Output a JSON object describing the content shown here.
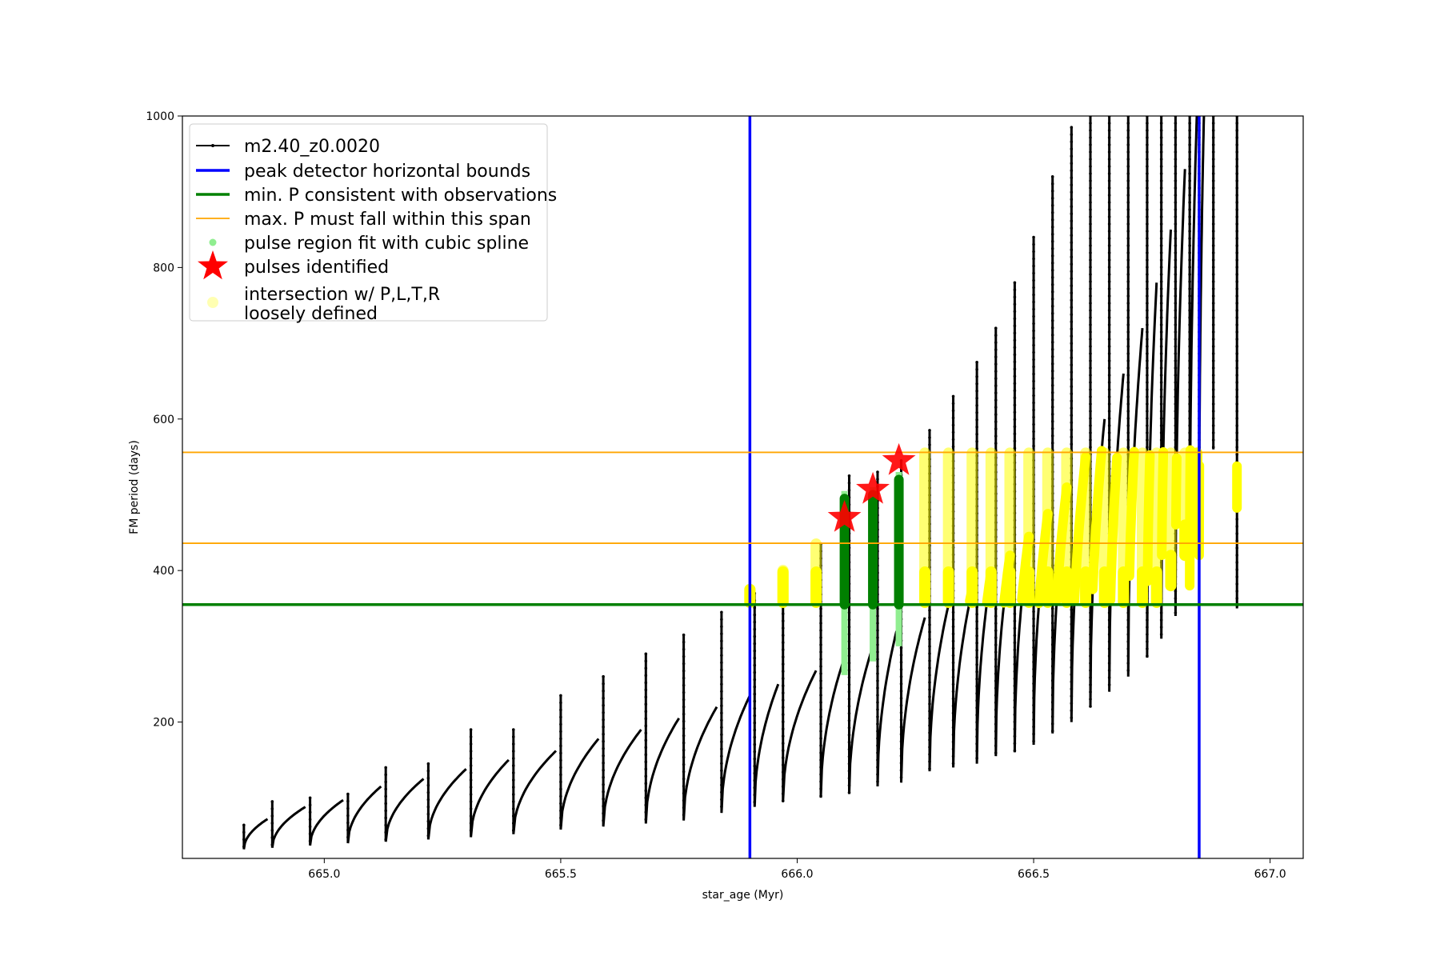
{
  "chart_data": {
    "type": "line",
    "xlabel": "star_age (Myr)",
    "ylabel": "FM period (days)",
    "xlim": [
      664.7,
      667.07
    ],
    "ylim": [
      20,
      1000
    ],
    "x_ticks": [
      665.0,
      665.5,
      666.0,
      666.5,
      667.0
    ],
    "x_tick_labels": [
      "665.0",
      "665.5",
      "666.0",
      "666.5",
      "667.0"
    ],
    "y_ticks": [
      200,
      400,
      600,
      800,
      1000
    ],
    "y_tick_labels": [
      "200",
      "400",
      "600",
      "800",
      "1000"
    ],
    "grid": false,
    "legend_position": "top-left",
    "colors": {
      "track": "#000000",
      "bounds": "#0000ff",
      "min_p": "#008000",
      "max_p_span": "#ffa500",
      "spline": "#90ee90",
      "pulse_star": "#ff0000",
      "loose": "#ffff00"
    },
    "series": [
      {
        "name": "m2.40_z0.0020",
        "kind": "pulse_track",
        "note_visible": false,
        "pulses": [
          {
            "start": 664.83,
            "y0": 32,
            "end": 664.88,
            "y1": 72,
            "spike": 64
          },
          {
            "start": 664.89,
            "y0": 34,
            "end": 664.96,
            "y1": 88,
            "spike": 95
          },
          {
            "start": 664.97,
            "y0": 37,
            "end": 665.04,
            "y1": 97,
            "spike": 100
          },
          {
            "start": 665.05,
            "y0": 40,
            "end": 665.12,
            "y1": 115,
            "spike": 105
          },
          {
            "start": 665.13,
            "y0": 42,
            "end": 665.21,
            "y1": 125,
            "spike": 140
          },
          {
            "start": 665.22,
            "y0": 45,
            "end": 665.3,
            "y1": 138,
            "spike": 145
          },
          {
            "start": 665.31,
            "y0": 48,
            "end": 665.39,
            "y1": 150,
            "spike": 190
          },
          {
            "start": 665.4,
            "y0": 52,
            "end": 665.49,
            "y1": 162,
            "spike": 190
          },
          {
            "start": 665.5,
            "y0": 58,
            "end": 665.58,
            "y1": 178,
            "spike": 235
          },
          {
            "start": 665.59,
            "y0": 62,
            "end": 665.67,
            "y1": 190,
            "spike": 260
          },
          {
            "start": 665.68,
            "y0": 66,
            "end": 665.75,
            "y1": 205,
            "spike": 290
          },
          {
            "start": 665.76,
            "y0": 70,
            "end": 665.83,
            "y1": 220,
            "spike": 315
          },
          {
            "start": 665.84,
            "y0": 80,
            "end": 665.9,
            "y1": 235,
            "spike": 345
          },
          {
            "start": 665.91,
            "y0": 88,
            "end": 665.96,
            "y1": 250,
            "spike": 370
          },
          {
            "start": 665.97,
            "y0": 95,
            "end": 666.04,
            "y1": 268,
            "spike": 400
          },
          {
            "start": 666.05,
            "y0": 100,
            "end": 666.1,
            "y1": 285,
            "spike": 435
          },
          {
            "start": 666.11,
            "y0": 105,
            "end": 666.16,
            "y1": 300,
            "spike": 525
          },
          {
            "start": 666.17,
            "y0": 115,
            "end": 666.21,
            "y1": 320,
            "spike": 530
          },
          {
            "start": 666.22,
            "y0": 120,
            "end": 666.27,
            "y1": 338,
            "spike": 545
          },
          {
            "start": 666.28,
            "y0": 135,
            "end": 666.32,
            "y1": 355,
            "spike": 585
          },
          {
            "start": 666.33,
            "y0": 140,
            "end": 666.37,
            "y1": 375,
            "spike": 630
          },
          {
            "start": 666.38,
            "y0": 145,
            "end": 666.41,
            "y1": 398,
            "spike": 675
          },
          {
            "start": 666.42,
            "y0": 155,
            "end": 666.45,
            "y1": 420,
            "spike": 720
          },
          {
            "start": 666.46,
            "y0": 160,
            "end": 666.49,
            "y1": 445,
            "spike": 780
          },
          {
            "start": 666.5,
            "y0": 170,
            "end": 666.53,
            "y1": 475,
            "spike": 840
          },
          {
            "start": 666.54,
            "y0": 185,
            "end": 666.57,
            "y1": 510,
            "spike": 920
          },
          {
            "start": 666.58,
            "y0": 200,
            "end": 666.61,
            "y1": 550,
            "spike": 985
          },
          {
            "start": 666.62,
            "y0": 220,
            "end": 666.65,
            "y1": 600,
            "spike": 1000
          },
          {
            "start": 666.66,
            "y0": 240,
            "end": 666.69,
            "y1": 660,
            "spike": 1000
          },
          {
            "start": 666.7,
            "y0": 260,
            "end": 666.73,
            "y1": 720,
            "spike": 1000
          },
          {
            "start": 666.74,
            "y0": 285,
            "end": 666.76,
            "y1": 780,
            "spike": 1000
          },
          {
            "start": 666.77,
            "y0": 310,
            "end": 666.79,
            "y1": 850,
            "spike": 1000
          },
          {
            "start": 666.8,
            "y0": 340,
            "end": 666.82,
            "y1": 930,
            "spike": 1000
          },
          {
            "start": 666.83,
            "y0": 380,
            "end": 666.845,
            "y1": 1000,
            "spike": 1000
          },
          {
            "start": 666.85,
            "y0": 420,
            "end": 666.86,
            "y1": 1000,
            "spike": 1000
          },
          {
            "start": 666.88,
            "y0": 560,
            "end": 666.88,
            "y1": 1000,
            "spike": 1000
          },
          {
            "start": 666.93,
            "y0": 350,
            "end": 666.93,
            "y1": 1000,
            "spike": 1000
          }
        ]
      },
      {
        "name": "peak detector horizontal bounds",
        "kind": "vline",
        "x": [
          665.9,
          666.85
        ]
      },
      {
        "name": "min. P consistent with observations",
        "kind": "hline",
        "y": [
          355
        ]
      },
      {
        "name": "max. P must fall within this span",
        "kind": "hline",
        "y": [
          436,
          556
        ]
      },
      {
        "name": "pulse region fit with cubic spline",
        "kind": "spline_regions",
        "regions": [
          {
            "x": 666.1,
            "lo": 262,
            "hi": 505
          },
          {
            "x": 666.16,
            "lo": 280,
            "hi": 510
          },
          {
            "x": 666.215,
            "lo": 300,
            "hi": 530
          }
        ]
      },
      {
        "name": "pulses identified",
        "kind": "points",
        "points": [
          {
            "x": 666.1,
            "y": 470
          },
          {
            "x": 666.16,
            "y": 507
          },
          {
            "x": 666.215,
            "y": 545
          }
        ]
      },
      {
        "name": "intersection w/ P,L,T,R\nloosely defined",
        "kind": "yellow_markers",
        "spikes": [
          {
            "x": 665.9,
            "lo": 358,
            "hi": 375
          },
          {
            "x": 665.97,
            "lo": 358,
            "hi": 400
          },
          {
            "x": 666.04,
            "lo": 358,
            "hi": 435
          },
          {
            "x": 666.27,
            "lo": 358,
            "hi": 555
          },
          {
            "x": 666.32,
            "lo": 358,
            "hi": 555
          },
          {
            "x": 666.37,
            "lo": 358,
            "hi": 555
          },
          {
            "x": 666.41,
            "lo": 358,
            "hi": 555
          },
          {
            "x": 666.45,
            "lo": 358,
            "hi": 555
          },
          {
            "x": 666.49,
            "lo": 358,
            "hi": 555
          },
          {
            "x": 666.53,
            "lo": 358,
            "hi": 555
          },
          {
            "x": 666.57,
            "lo": 358,
            "hi": 555
          },
          {
            "x": 666.61,
            "lo": 358,
            "hi": 555
          },
          {
            "x": 666.65,
            "lo": 358,
            "hi": 555
          },
          {
            "x": 666.69,
            "lo": 358,
            "hi": 555
          },
          {
            "x": 666.73,
            "lo": 358,
            "hi": 555
          },
          {
            "x": 666.76,
            "lo": 358,
            "hi": 555
          },
          {
            "x": 666.79,
            "lo": 380,
            "hi": 555
          },
          {
            "x": 666.82,
            "lo": 420,
            "hi": 555
          },
          {
            "x": 666.845,
            "lo": 540,
            "hi": 555
          }
        ]
      }
    ],
    "legend": [
      {
        "label": "m2.40_z0.0020",
        "marker": "line-dot"
      },
      {
        "label": "peak detector horizontal bounds",
        "marker": "blue-line"
      },
      {
        "label": "min. P consistent with observations",
        "marker": "green-line"
      },
      {
        "label": "max. P must fall within this span",
        "marker": "orange-line"
      },
      {
        "label": "pulse region fit with cubic spline",
        "marker": "lightgreen-dot"
      },
      {
        "label": "pulses identified",
        "marker": "red-star"
      },
      {
        "label": "intersection w/ P,L,T,R",
        "label2": "loosely defined",
        "marker": "yellow-dot"
      }
    ]
  }
}
